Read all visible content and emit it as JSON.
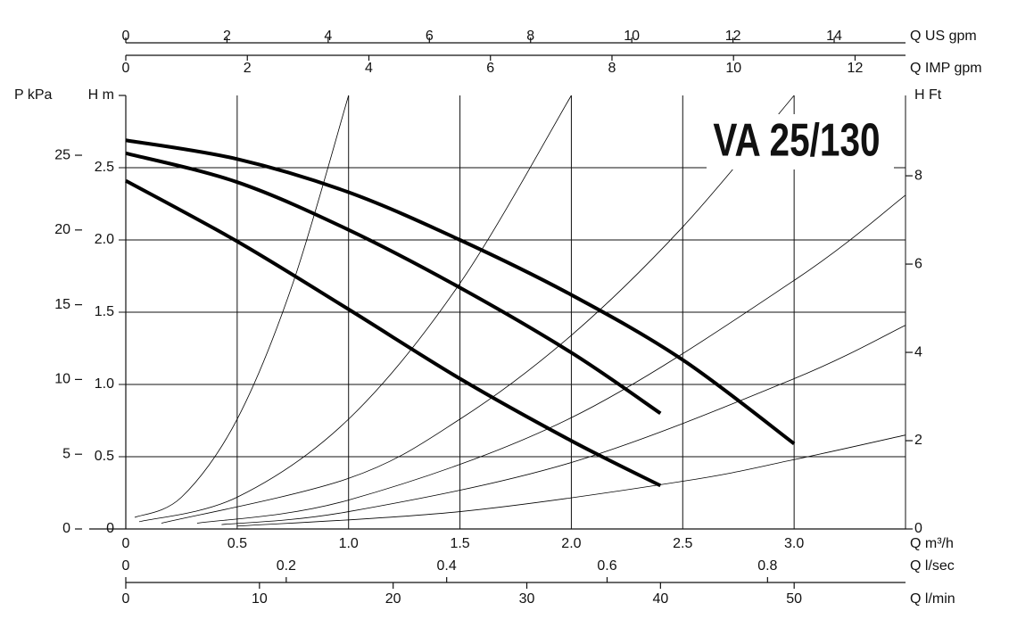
{
  "chart_data": {
    "type": "line",
    "title": "VA 25/130",
    "xlabel": "Q m³/h",
    "ylabel": "H m",
    "xlim": [
      0,
      3.5
    ],
    "ylim": [
      0,
      3.0
    ],
    "xticks": [
      0,
      0.5,
      {
        "value": 1,
        "label": "1.0"
      },
      1.5,
      {
        "value": 2,
        "label": "2.0"
      },
      2.5,
      {
        "value": 3,
        "label": "3.0"
      }
    ],
    "yticks": [
      0,
      0.5,
      {
        "value": 1,
        "label": "1.0"
      },
      1.5,
      {
        "value": 2,
        "label": "2.0"
      },
      2.5
    ],
    "grid": true,
    "secondary_axes": [
      {
        "label": "Q US gpm",
        "side": "top",
        "lim": [
          0,
          15.41
        ],
        "ticks": [
          0,
          2,
          4,
          6,
          8,
          10,
          12,
          14
        ]
      },
      {
        "label": "Q IMP gpm",
        "side": "top",
        "lim": [
          0,
          12.83
        ],
        "ticks": [
          0,
          2,
          4,
          6,
          8,
          10,
          12
        ]
      },
      {
        "label": "Q l/sec",
        "side": "bottom",
        "lim": [
          0,
          0.972
        ],
        "ticks": [
          0,
          0.2,
          0.4,
          0.6,
          0.8
        ]
      },
      {
        "label": "Q l/min",
        "side": "bottom",
        "lim": [
          0,
          58.33
        ],
        "ticks": [
          0,
          10,
          20,
          30,
          40,
          50
        ]
      },
      {
        "label": "P kPa",
        "side": "left",
        "lim": [
          0,
          29.0
        ],
        "ticks": [
          0,
          5,
          10,
          15,
          20,
          25
        ]
      },
      {
        "label": "H Ft",
        "side": "right",
        "lim": [
          0,
          9.82
        ],
        "ticks": [
          0,
          2,
          4,
          6,
          8
        ]
      }
    ],
    "series": [
      {
        "color": "#000",
        "width": 4,
        "x": [
          0,
          0.5,
          1.0,
          1.5,
          2.0,
          2.5,
          3.0
        ],
        "values": [
          2.69,
          2.56,
          2.33,
          2.0,
          1.62,
          1.17,
          0.59
        ]
      },
      {
        "color": "#000",
        "width": 4,
        "x": [
          0,
          0.5,
          1.0,
          1.5,
          2.0,
          2.4
        ],
        "values": [
          2.6,
          2.4,
          2.07,
          1.67,
          1.22,
          0.8
        ]
      },
      {
        "color": "#000",
        "width": 4,
        "x": [
          0,
          0.5,
          1.0,
          1.5,
          2.0,
          2.4
        ],
        "values": [
          2.41,
          1.99,
          1.52,
          1.04,
          0.61,
          0.3
        ]
      },
      {
        "color": "#000",
        "width": 0.8,
        "x": [
          0.04,
          0.25,
          0.5,
          0.75,
          1.0
        ],
        "values": [
          0.08,
          0.22,
          0.76,
          1.7,
          3.0
        ]
      },
      {
        "color": "#000",
        "width": 0.8,
        "x": [
          0.06,
          0.5,
          1.0,
          1.5,
          2.0
        ],
        "values": [
          0.05,
          0.22,
          0.76,
          1.7,
          3.0
        ]
      },
      {
        "color": "#000",
        "width": 0.8,
        "x": [
          0.16,
          1.0,
          1.5,
          2.0,
          2.5,
          3.0
        ],
        "values": [
          0.04,
          0.35,
          0.76,
          1.34,
          2.09,
          3.0
        ]
      },
      {
        "color": "#000",
        "width": 0.8,
        "x": [
          0.32,
          1.0,
          2.0,
          3.0,
          3.5
        ],
        "values": [
          0.04,
          0.2,
          0.77,
          1.72,
          2.31
        ]
      },
      {
        "color": "#000",
        "width": 0.8,
        "x": [
          0.43,
          1.0,
          2.0,
          3.0,
          3.5
        ],
        "values": [
          0.03,
          0.12,
          0.46,
          1.04,
          1.41
        ]
      },
      {
        "color": "#000",
        "width": 0.8,
        "x": [
          0.5,
          1.5,
          2.5,
          3.0,
          3.5
        ],
        "values": [
          0.02,
          0.12,
          0.33,
          0.48,
          0.65
        ]
      }
    ]
  }
}
